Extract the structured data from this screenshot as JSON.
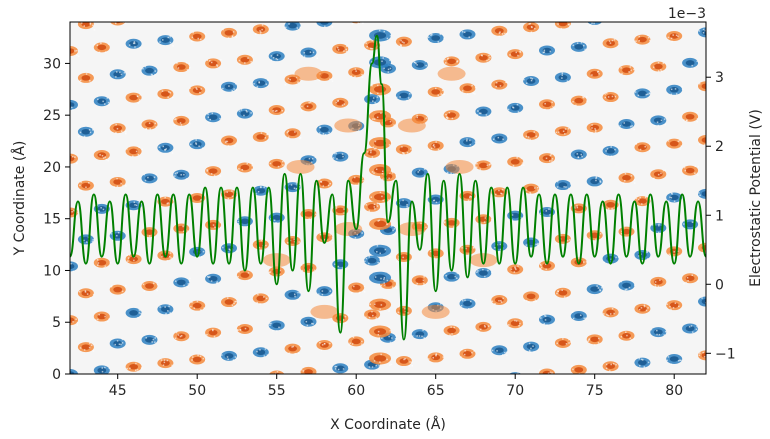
{
  "chart_data": {
    "type": "line",
    "title": "",
    "xlabel": "X Coordinate (Å)",
    "ylabel": "Y Coordinate (Å)",
    "y2label": "Electrostatic Potential (V)",
    "y2_offset_label": "1e−3",
    "xlim": [
      42,
      82
    ],
    "ylim": [
      0,
      34
    ],
    "y2lim": [
      -1.3,
      3.8
    ],
    "x_ticks": [
      45,
      50,
      55,
      60,
      65,
      70,
      75,
      80
    ],
    "y_ticks": [
      0,
      5,
      10,
      15,
      20,
      25,
      30
    ],
    "y2_ticks": [
      -1,
      0,
      1,
      2,
      3
    ],
    "x_tick_labels": [
      "45",
      "50",
      "55",
      "60",
      "65",
      "70",
      "75",
      "80"
    ],
    "y_tick_labels": [
      "0",
      "5",
      "10",
      "15",
      "20",
      "25",
      "30"
    ],
    "y2_tick_labels": [
      "−1",
      "0",
      "1",
      "2",
      "3"
    ],
    "background_color": "#f5f5f5",
    "line_color": "#008000",
    "atom_colors": {
      "orange": "#f4893b",
      "dark_orange": "#d6561a",
      "blue": "#2c7fc1",
      "dark_blue": "#1f5f96"
    },
    "series": [
      {
        "x": [
          42.0,
          42.5,
          43.0,
          43.5,
          44.0,
          44.5,
          45.0,
          45.5,
          46.0,
          46.5,
          47.0,
          47.5,
          48.0,
          48.5,
          49.0,
          49.5,
          50.0,
          50.5,
          51.0,
          51.5,
          52.0,
          52.5,
          53.0,
          53.5,
          54.0,
          54.5,
          55.0,
          55.5,
          56.0,
          56.5,
          57.0,
          57.5,
          58.0,
          58.5,
          59.0,
          59.5,
          60.0,
          60.5,
          61.0,
          61.3,
          61.6,
          62.0,
          62.5,
          63.0,
          63.5,
          64.0,
          64.5,
          65.0,
          65.5,
          66.0,
          66.5,
          67.0,
          67.5,
          68.0,
          68.5,
          69.0,
          69.5,
          70.0,
          70.5,
          71.0,
          71.5,
          72.0,
          72.5,
          73.0,
          73.5,
          74.0,
          74.5,
          75.0,
          75.5,
          76.0,
          76.5,
          77.0,
          77.5,
          78.0,
          78.5,
          79.0,
          79.5,
          80.0,
          80.5,
          81.0,
          81.5,
          82.0
        ],
        "y": [
          0.4,
          1.2,
          0.3,
          1.3,
          0.4,
          1.2,
          0.3,
          1.3,
          0.4,
          1.2,
          0.3,
          1.3,
          0.4,
          1.3,
          0.3,
          1.3,
          0.4,
          1.4,
          0.3,
          1.4,
          0.3,
          1.4,
          0.2,
          1.4,
          0.3,
          1.4,
          0.0,
          1.6,
          0.2,
          1.6,
          -0.1,
          1.5,
          0.6,
          1.3,
          -0.7,
          1.5,
          0.8,
          1.9,
          3.2,
          3.6,
          2.9,
          0.9,
          1.5,
          -0.8,
          1.2,
          0.5,
          1.6,
          -0.1,
          1.5,
          0.2,
          1.6,
          0.1,
          1.5,
          0.3,
          1.4,
          0.3,
          1.4,
          0.3,
          1.4,
          0.4,
          1.3,
          0.3,
          1.3,
          0.4,
          1.3,
          0.3,
          1.3,
          0.4,
          1.2,
          0.3,
          1.3,
          0.4,
          1.2,
          0.3,
          1.3,
          0.4,
          1.2,
          0.3,
          1.3,
          0.4,
          1.2,
          0.4
        ]
      }
    ]
  }
}
